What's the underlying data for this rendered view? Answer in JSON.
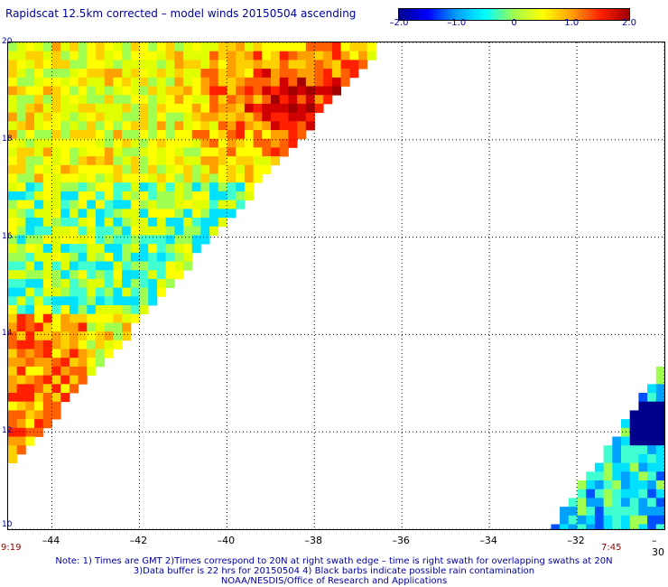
{
  "title": "Rapidscat 12.5km corrected – model winds 20150504 ascending",
  "colorbar": {
    "min": -2.0,
    "max": 2.0,
    "ticks": [
      "–2.0",
      "–1.0",
      "0",
      "1.0",
      "2.0"
    ],
    "tick_values": [
      -2.0,
      -1.0,
      0.0,
      1.0,
      2.0
    ],
    "colors": [
      "#00008c",
      "#0000ff",
      "#00a0ff",
      "#00ffff",
      "#a0ff50",
      "#ffff00",
      "#ffa000",
      "#ff2000",
      "#a00000"
    ]
  },
  "map": {
    "lon_range": [
      -45,
      -30
    ],
    "lat_range": [
      10,
      20
    ],
    "x_ticks": [
      "–44",
      "–42",
      "–40",
      "–38",
      "–36",
      "–34",
      "–32",
      "–30"
    ],
    "x_tick_values": [
      -44,
      -42,
      -40,
      -38,
      -36,
      -34,
      -32,
      -30
    ],
    "y_ticks": [
      "20",
      "18",
      "16",
      "14",
      "12",
      "10"
    ],
    "y_tick_values": [
      20,
      18,
      16,
      14,
      12,
      10
    ],
    "grid": "dotted"
  },
  "times": {
    "left": "9:19",
    "right": "7:45"
  },
  "notes": {
    "line1": "Note: 1) Times are GMT 2)Times correspond to 20N at right swath edge – time is right swath for overlapping swaths at 20N",
    "line2": "3)Data buffer is 22 hrs for 20150504 4) Black barbs indicate possible rain contamination",
    "line3": "NOAA/NESDIS/Office of Research and Applications"
  }
}
